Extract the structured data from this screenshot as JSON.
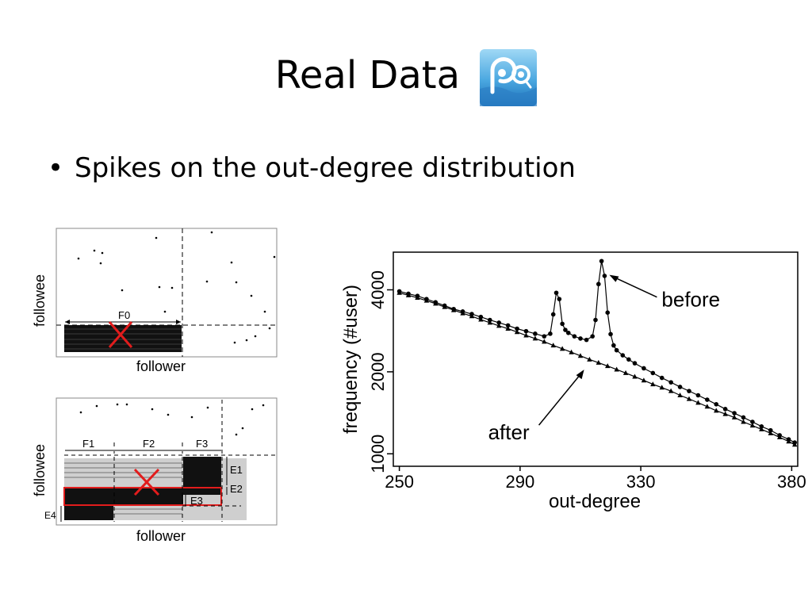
{
  "slide": {
    "title": "Real Data",
    "logo_icon": "plotly-logo-icon",
    "bullet_marker": "•",
    "bullet": "Spikes on the out-degree distribution"
  },
  "panels": [
    {
      "ylabel": "followee",
      "xlabel": "follower",
      "block_labels": [
        "F0"
      ]
    },
    {
      "ylabel": "followee",
      "xlabel": "follower",
      "block_labels": [
        "F1",
        "F2",
        "F3",
        "E1",
        "E2",
        "E3",
        "E4"
      ]
    }
  ],
  "chart_data": {
    "type": "scatter",
    "xlabel": "out-degree",
    "ylabel": "frequency (#user)",
    "xlim": [
      248,
      382
    ],
    "ylim_log": [
      900,
      5500
    ],
    "xticks": [
      250,
      290,
      330,
      380
    ],
    "yticks": [
      1000,
      2000,
      4000
    ],
    "annotations": [
      {
        "text": "before",
        "x": 318,
        "y": 4600
      },
      {
        "text": "after",
        "x": 312,
        "y": 2150
      }
    ],
    "series": [
      {
        "name": "before",
        "marker": "circle",
        "x": [
          250,
          253,
          256,
          259,
          262,
          265,
          268,
          271,
          274,
          277,
          280,
          283,
          286,
          289,
          292,
          295,
          298,
          300,
          301,
          302,
          303,
          304,
          305,
          306,
          308,
          310,
          312,
          314,
          315,
          316,
          317,
          318,
          319,
          320,
          321,
          322,
          324,
          326,
          328,
          331,
          334,
          337,
          340,
          343,
          346,
          349,
          352,
          355,
          358,
          361,
          364,
          367,
          370,
          373,
          376,
          379,
          381
        ],
        "y": [
          3950,
          3870,
          3800,
          3700,
          3600,
          3500,
          3400,
          3330,
          3260,
          3180,
          3100,
          3030,
          2960,
          2880,
          2820,
          2760,
          2700,
          2760,
          3250,
          3900,
          3700,
          3000,
          2850,
          2780,
          2700,
          2650,
          2620,
          2700,
          3100,
          4200,
          5100,
          4500,
          3300,
          2750,
          2500,
          2400,
          2300,
          2220,
          2150,
          2060,
          1980,
          1900,
          1830,
          1760,
          1700,
          1640,
          1580,
          1520,
          1460,
          1410,
          1360,
          1310,
          1260,
          1220,
          1170,
          1130,
          1100
        ]
      },
      {
        "name": "after",
        "marker": "triangle",
        "x": [
          250,
          253,
          256,
          259,
          262,
          265,
          268,
          271,
          274,
          277,
          280,
          283,
          286,
          289,
          292,
          295,
          298,
          301,
          304,
          307,
          310,
          313,
          316,
          319,
          322,
          325,
          328,
          331,
          334,
          337,
          340,
          343,
          346,
          349,
          352,
          355,
          358,
          361,
          364,
          367,
          370,
          373,
          376,
          379,
          381
        ],
        "y": [
          3900,
          3820,
          3740,
          3650,
          3560,
          3460,
          3370,
          3280,
          3200,
          3110,
          3030,
          2950,
          2880,
          2800,
          2720,
          2650,
          2580,
          2500,
          2430,
          2360,
          2290,
          2220,
          2160,
          2100,
          2040,
          1980,
          1920,
          1860,
          1800,
          1750,
          1700,
          1640,
          1590,
          1540,
          1490,
          1440,
          1400,
          1360,
          1310,
          1270,
          1230,
          1190,
          1150,
          1110,
          1080
        ]
      }
    ]
  }
}
